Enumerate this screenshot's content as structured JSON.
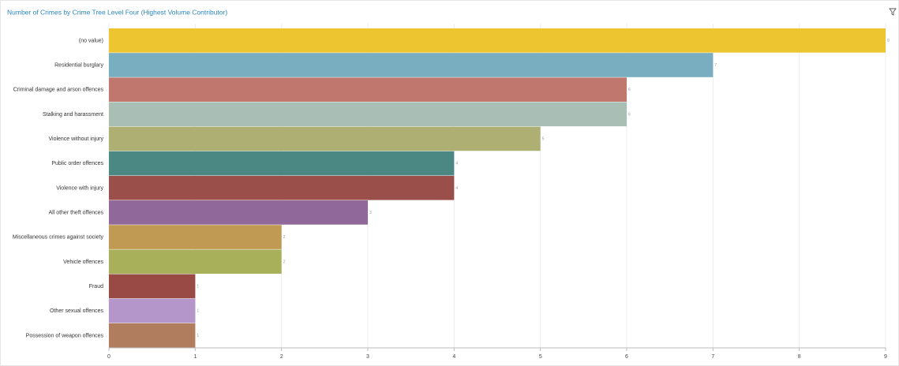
{
  "chart_data": {
    "type": "barh",
    "title": "Number of Crimes by Crime Tree Level Four (Highest Volume Contributor)",
    "categories": [
      "(no value)",
      "Residential burglary",
      "Criminal damage and arson offences",
      "Stalking and harassment",
      "Violence without injury",
      "Public order offences",
      "Violence with injury",
      "All other theft offences",
      "Miscellaneous crimes against society",
      "Vehicle offences",
      "Fraud",
      "Other sexual offences",
      "Possession of weapon offences"
    ],
    "values": [
      9,
      7,
      6,
      6,
      5,
      4,
      4,
      3,
      2,
      2,
      1,
      1,
      1
    ],
    "colors": [
      "#ecc530",
      "#78aebf",
      "#c0776d",
      "#a9bfb5",
      "#adb072",
      "#4b8783",
      "#9a4f4a",
      "#91689a",
      "#c09a52",
      "#a9b05a",
      "#9a4a45",
      "#b596cb",
      "#b07e5f"
    ],
    "xlim": [
      0,
      9
    ],
    "xticks": [
      0,
      1,
      2,
      3,
      4,
      5,
      6,
      7,
      8,
      9
    ],
    "grid": true
  }
}
